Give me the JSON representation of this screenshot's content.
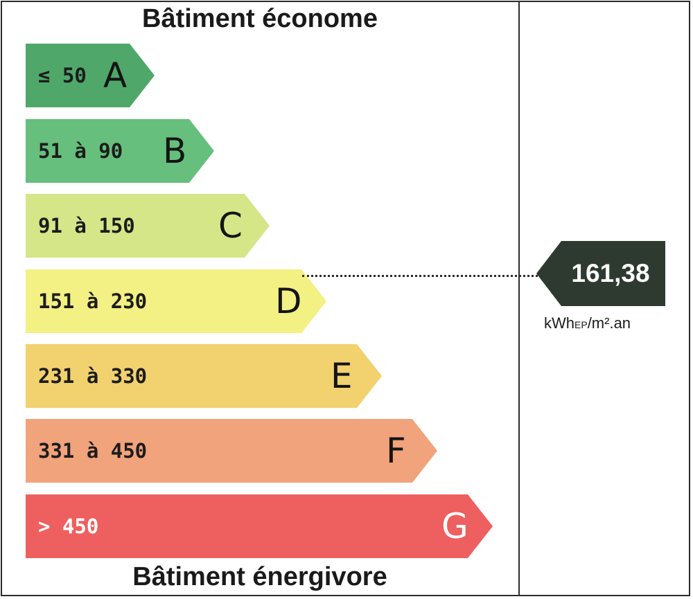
{
  "header": {
    "title": "Bâtiment économe"
  },
  "footer": {
    "title": "Bâtiment énergivore"
  },
  "colors": {
    "A": "#4fa86a",
    "B": "#66bf7c",
    "C": "#d4e688",
    "D": "#f3f084",
    "E": "#f2d16f",
    "F": "#f1a37c",
    "G": "#ee5f5f",
    "marker": "#2e3a30"
  },
  "bands": [
    {
      "letter": "A",
      "range": "≤ 50"
    },
    {
      "letter": "B",
      "range": "51 à 90"
    },
    {
      "letter": "C",
      "range": "91 à 150"
    },
    {
      "letter": "D",
      "range": "151 à 230"
    },
    {
      "letter": "E",
      "range": "231 à 330"
    },
    {
      "letter": "F",
      "range": "331 à 450"
    },
    {
      "letter": "G",
      "range": "> 450"
    }
  ],
  "rating": {
    "value": "161,38",
    "band": "D",
    "unit_main": "kWh",
    "unit_sub": "EP",
    "unit_rest": "/m².an"
  }
}
